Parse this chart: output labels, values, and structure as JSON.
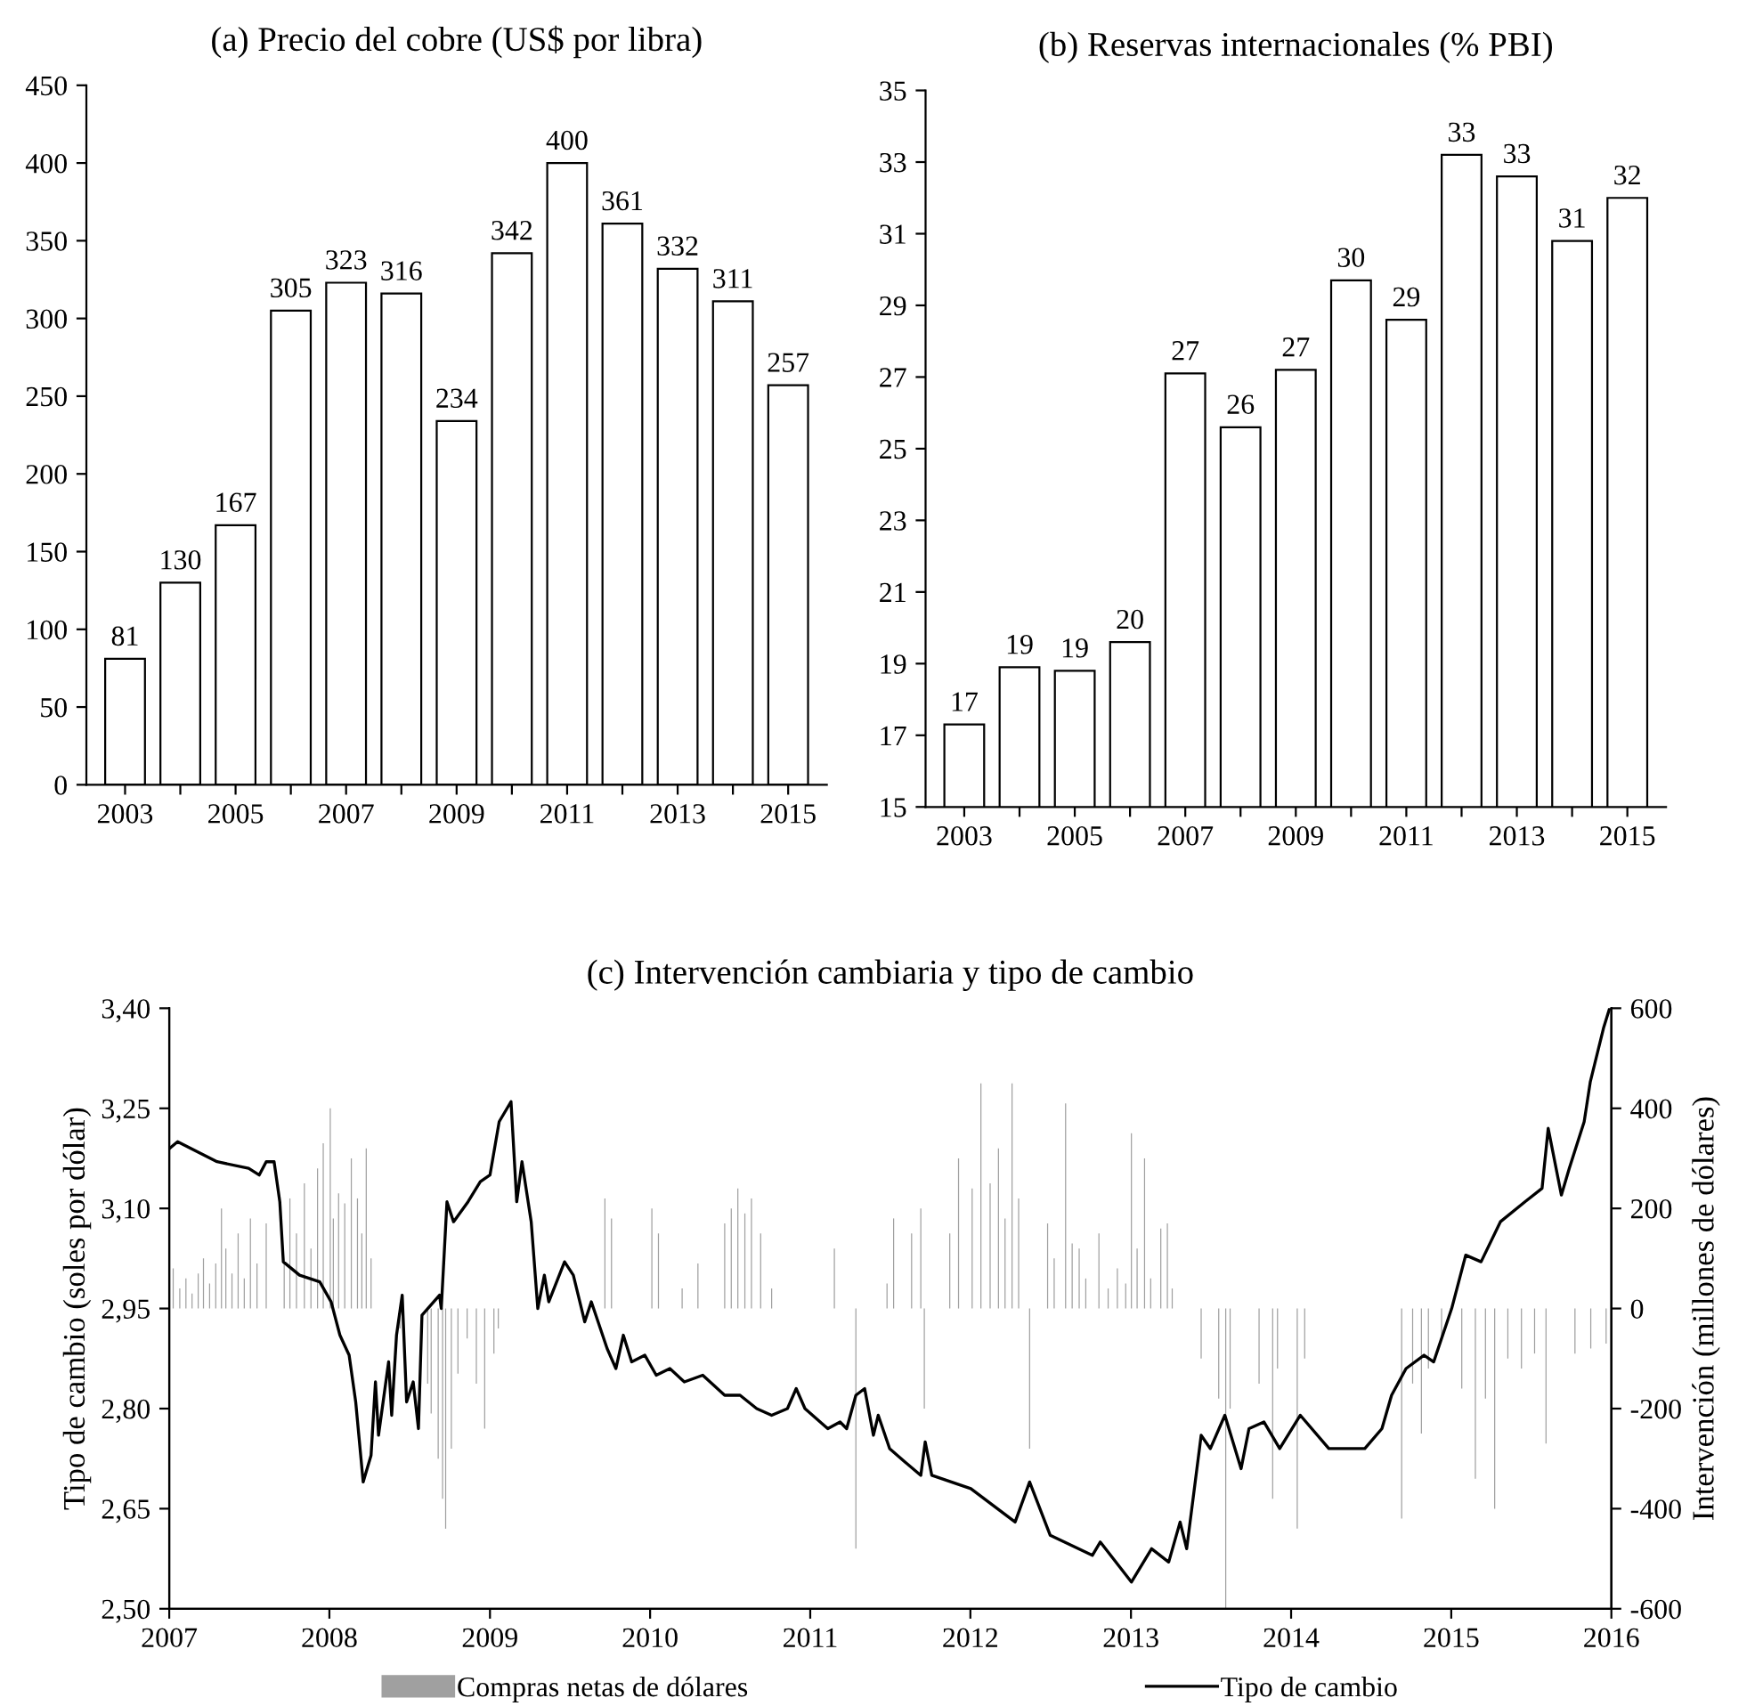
{
  "chart_data": [
    {
      "type": "bar",
      "title": "(a) Precio del cobre (US$ por libra)",
      "categories": [
        "2003",
        null,
        "2005",
        null,
        "2007",
        null,
        "2009",
        null,
        "2011",
        null,
        "2013",
        null,
        "2015"
      ],
      "values": [
        81,
        130,
        167,
        305,
        323,
        316,
        234,
        342,
        400,
        361,
        332,
        311,
        257
      ],
      "color": "#ffffff",
      "data_labels": true,
      "ylim": [
        0,
        450
      ],
      "yticks": [
        0,
        50,
        100,
        150,
        200,
        250,
        300,
        350,
        400,
        450
      ]
    },
    {
      "type": "bar",
      "title": "(b) Reservas internacionales (% PBI)",
      "categories": [
        "2003",
        null,
        "2005",
        null,
        "2007",
        null,
        "2009",
        null,
        "2011",
        null,
        "2013",
        null,
        "2015"
      ],
      "values": [
        17.3,
        18.9,
        18.8,
        19.6,
        27.1,
        25.6,
        27.2,
        29.7,
        28.6,
        33.2,
        32.6,
        30.8,
        32.0
      ],
      "color": "#ffffff",
      "value_labels": [
        "17",
        "19",
        "19",
        "20",
        "27",
        "26",
        "27",
        "30",
        "29",
        "33",
        "33",
        "31",
        "32"
      ],
      "ylim": [
        15,
        35
      ],
      "yticks": [
        15,
        17,
        19,
        21,
        23,
        25,
        27,
        29,
        31,
        33,
        35
      ]
    },
    {
      "type": "line",
      "title": "(c) Intervención cambiaria y tipo de cambio",
      "ylabel": "Tipo de cambio (soles por dólar)",
      "y2label": "Intervención (millones de dólares)",
      "xlim": [
        "2007-01-01",
        "2016-01-01"
      ],
      "xticks": [
        {
          "value": "2007-01-01",
          "label": "2007"
        },
        {
          "value": "2008-01-01",
          "label": "2008"
        },
        {
          "value": "2009-01-01",
          "label": "2009"
        },
        {
          "value": "2010-01-01",
          "label": "2010"
        },
        {
          "value": "2011-01-01",
          "label": "2011"
        },
        {
          "value": "2012-01-01",
          "label": "2012"
        },
        {
          "value": "2013-01-01",
          "label": "2013"
        },
        {
          "value": "2014-01-01",
          "label": "2014"
        },
        {
          "value": "2015-01-01",
          "label": "2015"
        },
        {
          "value": "2016-01-01",
          "label": "2016"
        }
      ],
      "ylim": [
        2.5,
        3.4
      ],
      "yticks": [
        {
          "value": 2.5,
          "label": "2,50"
        },
        {
          "value": 2.65,
          "label": "2,65"
        },
        {
          "value": 2.8,
          "label": "2,80"
        },
        {
          "value": 2.95,
          "label": "2,95"
        },
        {
          "value": 3.1,
          "label": "3,10"
        },
        {
          "value": 3.25,
          "label": "3,25"
        },
        {
          "value": 3.4,
          "label": "3,40"
        }
      ],
      "y2lim": [
        -600,
        600
      ],
      "y2ticks": [
        -600,
        -400,
        -200,
        0,
        200,
        400,
        600
      ],
      "grid": false,
      "legend": "bottom",
      "marker": "none",
      "line_style": "solid",
      "series": [
        {
          "type": "bar",
          "axis": "y2",
          "name": "Compras netas de dólares",
          "color": "#a0a0a0",
          "x": [
            "2007-01-10",
            "2007-01-25",
            "2007-02-08",
            "2007-02-22",
            "2007-03-08",
            "2007-03-20",
            "2007-04-03",
            "2007-04-17",
            "2007-04-30",
            "2007-05-10",
            "2007-05-24",
            "2007-06-07",
            "2007-06-21",
            "2007-07-05",
            "2007-07-20",
            "2007-08-10",
            "2007-09-20",
            "2007-10-03",
            "2007-10-18",
            "2007-11-05",
            "2007-11-20",
            "2007-12-05",
            "2007-12-18",
            "2008-01-03",
            "2008-01-10",
            "2008-01-22",
            "2008-02-05",
            "2008-02-20",
            "2008-03-05",
            "2008-03-15",
            "2008-03-25",
            "2008-04-05",
            "2008-06-10",
            "2008-08-12",
            "2008-08-20",
            "2008-09-05",
            "2008-09-15",
            "2008-09-22",
            "2008-10-05",
            "2008-10-20",
            "2008-11-10",
            "2008-12-01",
            "2008-12-20",
            "2009-01-10",
            "2009-01-20",
            "2009-09-20",
            "2009-10-05",
            "2010-01-05",
            "2010-01-20",
            "2010-03-15",
            "2010-04-20",
            "2010-06-20",
            "2010-07-05",
            "2010-07-20",
            "2010-08-05",
            "2010-08-20",
            "2010-09-10",
            "2010-10-05",
            "2011-02-25",
            "2011-04-15",
            "2011-06-25",
            "2011-07-10",
            "2011-08-20",
            "2011-09-10",
            "2011-09-18",
            "2011-11-15",
            "2011-12-05",
            "2012-01-05",
            "2012-01-25",
            "2012-02-15",
            "2012-03-05",
            "2012-03-20",
            "2012-04-05",
            "2012-04-20",
            "2012-05-15",
            "2012-06-25",
            "2012-07-10",
            "2012-08-05",
            "2012-08-20",
            "2012-09-05",
            "2012-09-20",
            "2012-10-20",
            "2012-11-10",
            "2012-12-01",
            "2012-12-20",
            "2013-01-02",
            "2013-01-15",
            "2013-02-01",
            "2013-02-15",
            "2013-03-10",
            "2013-03-25",
            "2013-04-05",
            "2013-06-10",
            "2013-07-20",
            "2013-08-05",
            "2013-08-15",
            "2013-10-20",
            "2013-11-20",
            "2013-12-01",
            "2014-01-15",
            "2014-02-01",
            "2014-09-10",
            "2014-10-05",
            "2014-10-25",
            "2014-11-10",
            "2014-12-10",
            "2015-01-25",
            "2015-02-25",
            "2015-03-20",
            "2015-04-10",
            "2015-05-10",
            "2015-06-10",
            "2015-07-10",
            "2015-08-05",
            "2015-10-10",
            "2015-11-15",
            "2015-12-20"
          ],
          "values": [
            80,
            40,
            60,
            30,
            70,
            100,
            50,
            90,
            200,
            120,
            70,
            150,
            60,
            180,
            90,
            170,
            90,
            220,
            150,
            250,
            120,
            280,
            330,
            400,
            180,
            230,
            210,
            300,
            220,
            150,
            320,
            100,
            -40,
            -150,
            -210,
            -300,
            -380,
            -440,
            -280,
            -130,
            -60,
            -150,
            -240,
            -90,
            -40,
            220,
            180,
            200,
            150,
            40,
            90,
            170,
            200,
            240,
            190,
            220,
            150,
            40,
            120,
            -480,
            50,
            180,
            150,
            200,
            -200,
            150,
            300,
            240,
            450,
            250,
            320,
            180,
            450,
            220,
            -280,
            170,
            100,
            410,
            130,
            120,
            60,
            150,
            40,
            80,
            50,
            350,
            120,
            300,
            60,
            160,
            170,
            40,
            -100,
            -180,
            -600,
            -200,
            -150,
            -380,
            -120,
            -440,
            -100,
            -420,
            -150,
            -250,
            -120,
            -60,
            -160,
            -340,
            -180,
            -400,
            -100,
            -120,
            -90,
            -270,
            -90,
            -80,
            -70
          ]
        },
        {
          "type": "line",
          "axis": "y",
          "name": "Tipo de cambio",
          "color": "#000000",
          "x": [
            "2007-01-02",
            "2007-01-20",
            "2007-04-20",
            "2007-07-01",
            "2007-07-25",
            "2007-08-10",
            "2007-08-28",
            "2007-09-10",
            "2007-09-18",
            "2007-10-25",
            "2007-12-10",
            "2008-01-05",
            "2008-01-25",
            "2008-02-15",
            "2008-03-01",
            "2008-03-18",
            "2008-04-05",
            "2008-04-15",
            "2008-04-22",
            "2008-05-15",
            "2008-05-22",
            "2008-06-02",
            "2008-06-15",
            "2008-06-25",
            "2008-07-10",
            "2008-07-22",
            "2008-07-30",
            "2008-09-08",
            "2008-09-12",
            "2008-09-25",
            "2008-10-10",
            "2008-11-12",
            "2008-12-10",
            "2009-01-01",
            "2009-01-22",
            "2009-02-18",
            "2009-03-03",
            "2009-03-15",
            "2009-04-05",
            "2009-04-20",
            "2009-05-05",
            "2009-05-15",
            "2009-06-20",
            "2009-07-10",
            "2009-08-05",
            "2009-08-20",
            "2009-09-25",
            "2009-10-15",
            "2009-11-01",
            "2009-11-20",
            "2009-12-20",
            "2010-01-15",
            "2010-02-15",
            "2010-03-20",
            "2010-05-01",
            "2010-06-20",
            "2010-07-25",
            "2010-09-01",
            "2010-10-05",
            "2010-11-10",
            "2010-11-30",
            "2010-12-20",
            "2011-02-10",
            "2011-03-10",
            "2011-03-25",
            "2011-04-15",
            "2011-05-05",
            "2011-05-25",
            "2011-06-05",
            "2011-07-01",
            "2011-08-05",
            "2011-09-10",
            "2011-09-20",
            "2011-10-05",
            "2012-01-02",
            "2012-04-12",
            "2012-05-15",
            "2012-07-01",
            "2012-10-05",
            "2012-10-23",
            "2013-01-02",
            "2013-02-17",
            "2013-03-28",
            "2013-04-23",
            "2013-05-08",
            "2013-06-10",
            "2013-07-01",
            "2013-08-03",
            "2013-09-09",
            "2013-09-27",
            "2013-10-31",
            "2013-12-06",
            "2014-01-22",
            "2014-03-28",
            "2014-06-18",
            "2014-07-27",
            "2014-08-18",
            "2014-09-20",
            "2014-10-31",
            "2014-11-22",
            "2015-01-02",
            "2015-02-03",
            "2015-03-10",
            "2015-04-23",
            "2015-06-18",
            "2015-07-27",
            "2015-08-10",
            "2015-09-09",
            "2015-09-27",
            "2015-10-31",
            "2015-11-14",
            "2015-12-14",
            "2015-12-28"
          ],
          "values": [
            3.19,
            3.2,
            3.17,
            3.16,
            3.15,
            3.17,
            3.17,
            3.11,
            3.02,
            3.0,
            2.99,
            2.96,
            2.91,
            2.88,
            2.81,
            2.69,
            2.73,
            2.84,
            2.76,
            2.87,
            2.79,
            2.91,
            2.97,
            2.81,
            2.84,
            2.77,
            2.94,
            2.97,
            2.95,
            3.11,
            3.08,
            3.11,
            3.14,
            3.15,
            3.23,
            3.26,
            3.11,
            3.17,
            3.08,
            2.95,
            3.0,
            2.96,
            3.02,
            3.0,
            2.93,
            2.96,
            2.89,
            2.86,
            2.91,
            2.87,
            2.88,
            2.85,
            2.86,
            2.84,
            2.85,
            2.82,
            2.82,
            2.8,
            2.79,
            2.8,
            2.83,
            2.8,
            2.77,
            2.78,
            2.77,
            2.82,
            2.83,
            2.76,
            2.79,
            2.74,
            2.72,
            2.7,
            2.75,
            2.7,
            2.68,
            2.63,
            2.69,
            2.61,
            2.58,
            2.6,
            2.54,
            2.59,
            2.57,
            2.63,
            2.59,
            2.76,
            2.74,
            2.79,
            2.71,
            2.77,
            2.78,
            2.74,
            2.79,
            2.74,
            2.74,
            2.77,
            2.82,
            2.86,
            2.88,
            2.87,
            2.95,
            3.03,
            3.02,
            3.08,
            3.11,
            3.13,
            3.22,
            3.12,
            3.16,
            3.23,
            3.29,
            3.37,
            3.4
          ]
        }
      ]
    }
  ]
}
